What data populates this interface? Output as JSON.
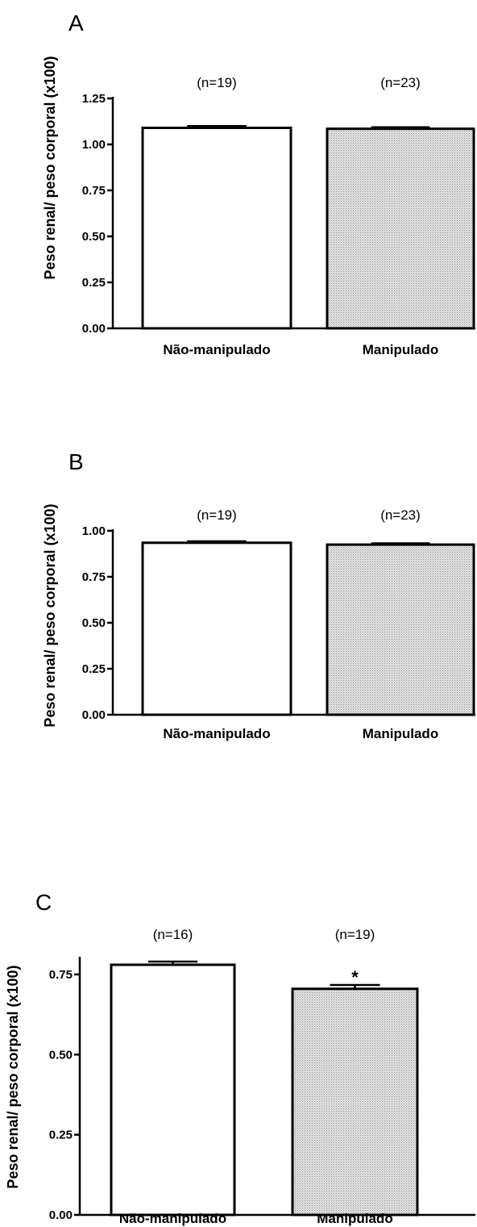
{
  "chart_data": [
    {
      "type": "bar",
      "panel_label": "A",
      "ylabel": "Peso renal/ peso corporal (x100)",
      "categories": [
        "Não-manipulado",
        "Manipulado"
      ],
      "values": [
        1.09,
        1.085
      ],
      "errors": [
        0.01,
        0.008
      ],
      "n_labels": [
        "(n=19)",
        "(n=23)"
      ],
      "significance": [
        "",
        ""
      ],
      "ylim": [
        0,
        1.25
      ],
      "yticks": [
        0,
        0.25,
        0.5,
        0.75,
        1.0,
        1.25
      ],
      "ytick_labels": [
        "0.00",
        "0.25",
        "0.50",
        "0.75",
        "1.00",
        "1.25"
      ],
      "bar_fills": [
        "#ffffff",
        "#dcdcdc"
      ]
    },
    {
      "type": "bar",
      "panel_label": "B",
      "ylabel": "Peso renal/ peso corporal (x100)",
      "categories": [
        "Não-manipulado",
        "Manipulado"
      ],
      "values": [
        0.935,
        0.925
      ],
      "errors": [
        0.008,
        0.007
      ],
      "n_labels": [
        "(n=19)",
        "(n=23)"
      ],
      "significance": [
        "",
        ""
      ],
      "ylim": [
        0,
        1.0
      ],
      "yticks": [
        0,
        0.25,
        0.5,
        0.75,
        1.0
      ],
      "ytick_labels": [
        "0.00",
        "0.25",
        "0.50",
        "0.75",
        "1.00"
      ],
      "bar_fills": [
        "#ffffff",
        "#dcdcdc"
      ]
    },
    {
      "type": "bar",
      "panel_label": "C",
      "ylabel": "Peso renal/ peso corporal (x100)",
      "categories": [
        "Não-manipulado",
        "Manipulado"
      ],
      "values": [
        0.78,
        0.705
      ],
      "errors": [
        0.01,
        0.012
      ],
      "n_labels": [
        "(n=16)",
        "(n=19)"
      ],
      "significance": [
        "",
        "*"
      ],
      "ylim": [
        0,
        0.8
      ],
      "yticks": [
        0,
        0.25,
        0.5,
        0.75
      ],
      "ytick_labels": [
        "0.00",
        "0.25",
        "0.50",
        "0.75"
      ],
      "bar_fills": [
        "#ffffff",
        "#dcdcdc"
      ]
    }
  ]
}
